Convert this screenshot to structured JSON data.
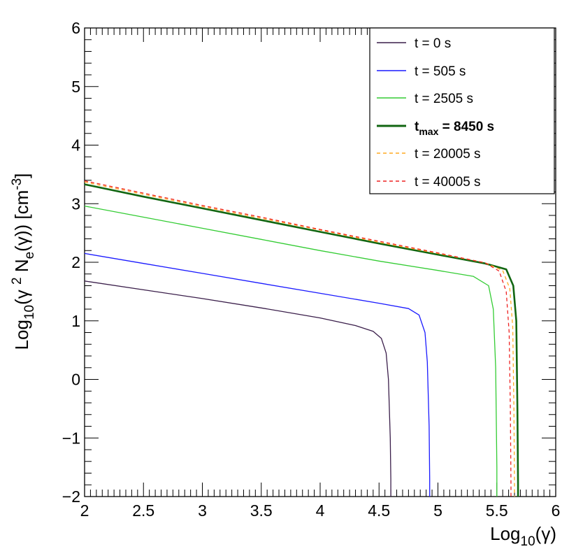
{
  "chart_data": {
    "type": "line",
    "title": "",
    "xlabel": {
      "base": "Log",
      "sub": "10",
      "paren": "(γ)"
    },
    "ylabel": {
      "base": "Log",
      "sub": "10",
      "mid": "(γ ",
      "sup": "2",
      "mid2": " N",
      "sub2": "e",
      "tail": "(γ)) [cm",
      "sup2": "-3",
      "end": "]"
    },
    "xlim": [
      2,
      6
    ],
    "ylim": [
      -2,
      6
    ],
    "xticks": [
      2,
      2.5,
      3,
      3.5,
      4,
      4.5,
      5,
      5.5,
      6
    ],
    "xtick_labels": [
      "2",
      "2.5",
      "3",
      "3.5",
      "4",
      "4.5",
      "5",
      "5.5",
      "6"
    ],
    "yticks": [
      -2,
      -1,
      0,
      1,
      2,
      3,
      4,
      5,
      6
    ],
    "ytick_labels": [
      "−2",
      "−1",
      "0",
      "1",
      "2",
      "3",
      "4",
      "5",
      "6"
    ],
    "grid": false,
    "legend_position": "top-right",
    "series": [
      {
        "name": "t = 0 s",
        "color": "#3a1e4a",
        "dash": "solid",
        "bold": false,
        "x": [
          2.0,
          2.5,
          3.0,
          3.5,
          4.0,
          4.3,
          4.45,
          4.52,
          4.56,
          4.58,
          4.595,
          4.6,
          4.6
        ],
        "y": [
          1.68,
          1.53,
          1.38,
          1.22,
          1.05,
          0.92,
          0.82,
          0.7,
          0.45,
          0.0,
          -1.0,
          -1.7,
          -2.0
        ]
      },
      {
        "name": "t = 505 s",
        "color": "#1a1aff",
        "dash": "solid",
        "bold": false,
        "x": [
          2.0,
          2.5,
          3.0,
          3.5,
          4.0,
          4.5,
          4.75,
          4.84,
          4.89,
          4.91,
          4.925,
          4.93,
          4.93
        ],
        "y": [
          2.15,
          1.98,
          1.81,
          1.64,
          1.47,
          1.3,
          1.21,
          1.1,
          0.8,
          0.3,
          -0.8,
          -1.7,
          -2.0
        ]
      },
      {
        "name": "t = 2505 s",
        "color": "#33cc33",
        "dash": "solid",
        "bold": false,
        "x": [
          2.0,
          2.5,
          3.0,
          3.5,
          4.0,
          4.5,
          5.0,
          5.3,
          5.43,
          5.47,
          5.49,
          5.5,
          5.5
        ],
        "y": [
          2.96,
          2.77,
          2.58,
          2.39,
          2.2,
          2.02,
          1.86,
          1.76,
          1.6,
          1.2,
          0.2,
          -1.5,
          -2.0
        ]
      },
      {
        "name": "t_max = 8450 s",
        "label_base": "t",
        "label_sub": "max",
        "label_rest": " = 8450 s",
        "color": "#116611",
        "dash": "solid",
        "bold": true,
        "x": [
          2.0,
          2.5,
          3.0,
          3.5,
          4.0,
          4.5,
          5.0,
          5.4,
          5.58,
          5.64,
          5.665,
          5.675,
          5.68,
          5.68
        ],
        "y": [
          3.33,
          3.12,
          2.92,
          2.72,
          2.52,
          2.32,
          2.13,
          1.98,
          1.88,
          1.6,
          1.0,
          -0.5,
          -1.8,
          -2.0
        ]
      },
      {
        "name": "t = 20005 s",
        "color": "#ffaa22",
        "dash": "dashed",
        "bold": false,
        "x": [
          2.0,
          2.5,
          3.0,
          3.5,
          4.0,
          4.5,
          5.0,
          5.4,
          5.55,
          5.61,
          5.635,
          5.645,
          5.65,
          5.65
        ],
        "y": [
          3.37,
          3.16,
          2.95,
          2.75,
          2.55,
          2.34,
          2.15,
          1.99,
          1.86,
          1.55,
          0.9,
          -0.5,
          -1.8,
          -2.0
        ]
      },
      {
        "name": "t = 40005 s",
        "color": "#ee2222",
        "dash": "dashed",
        "bold": false,
        "x": [
          2.0,
          2.5,
          3.0,
          3.5,
          4.0,
          4.5,
          5.0,
          5.4,
          5.52,
          5.58,
          5.605,
          5.615,
          5.62,
          5.62
        ],
        "y": [
          3.39,
          3.18,
          2.97,
          2.77,
          2.56,
          2.36,
          2.16,
          1.99,
          1.85,
          1.5,
          0.8,
          -0.5,
          -1.8,
          -2.0
        ]
      }
    ]
  }
}
